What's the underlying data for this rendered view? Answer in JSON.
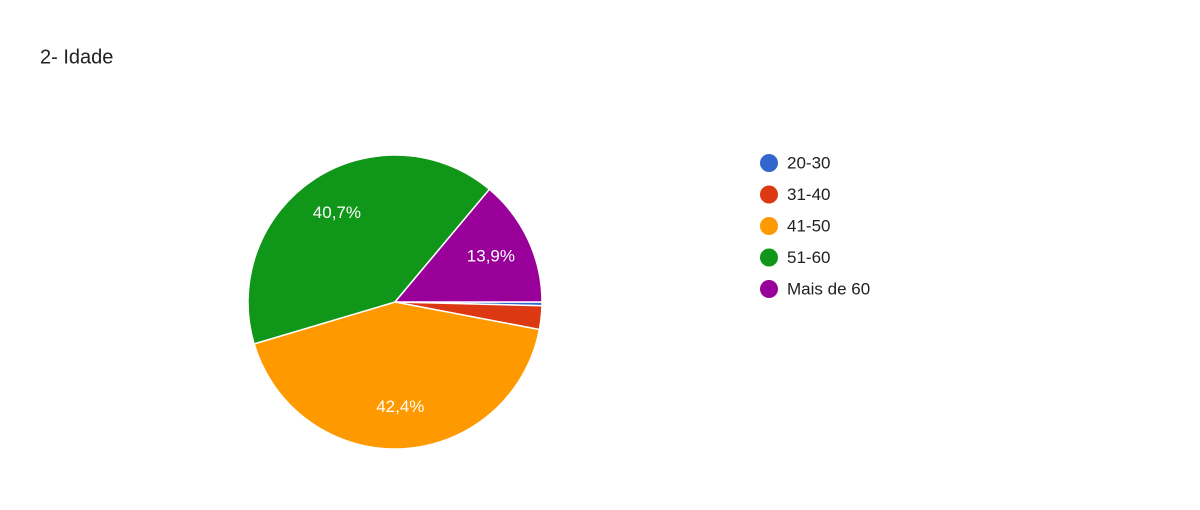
{
  "chart_data": {
    "type": "pie",
    "title": "2- Idade",
    "categories": [
      "20-30",
      "31-40",
      "41-50",
      "51-60",
      "Mais de 60"
    ],
    "values": [
      0.4,
      2.6,
      42.4,
      40.7,
      13.9
    ],
    "value_labels": [
      null,
      null,
      "42,4%",
      "40,7%",
      "13,9%"
    ],
    "colors": [
      "#3366cc",
      "#dc3912",
      "#ff9900",
      "#109618",
      "#990099"
    ],
    "legend": "right"
  }
}
